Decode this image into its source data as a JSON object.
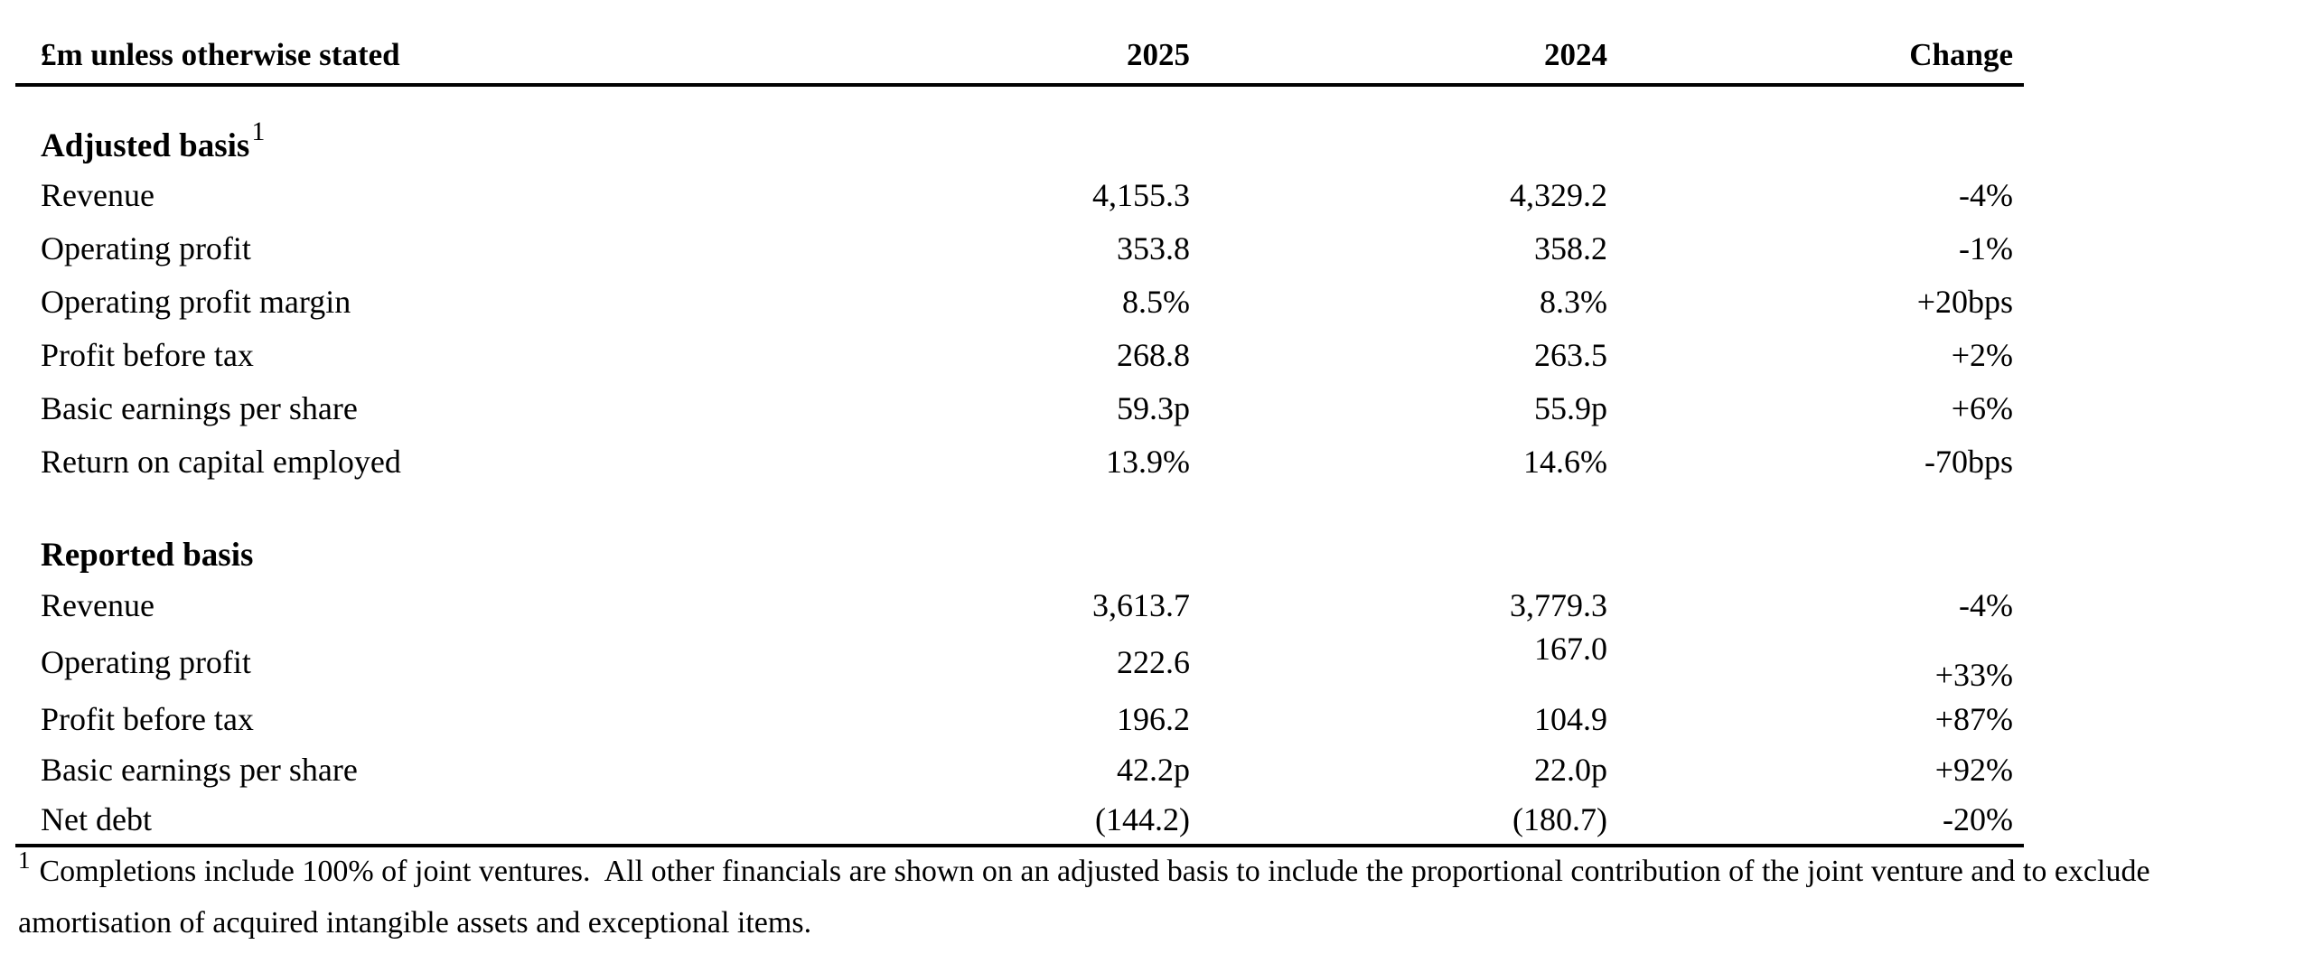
{
  "table": {
    "header": {
      "label": "£m unless otherwise stated",
      "col2025": "2025",
      "col2024": "2024",
      "change": "Change"
    },
    "sections": [
      {
        "title": "Adjusted basis",
        "title_superscript": "1",
        "rows": [
          {
            "label": "Revenue",
            "v2025": "4,155.3",
            "v2024": "4,329.2",
            "change": "-4%"
          },
          {
            "label": "Operating profit",
            "v2025": "353.8",
            "v2024": "358.2",
            "change": "-1%"
          },
          {
            "label": "Operating profit margin",
            "v2025": "8.5%",
            "v2024": "8.3%",
            "change": "+20bps"
          },
          {
            "label": "Profit before tax",
            "v2025": "268.8",
            "v2024": "263.5",
            "change": "+2%"
          },
          {
            "label": "Basic earnings per share",
            "v2025": "59.3p",
            "v2024": "55.9p",
            "change": "+6%"
          },
          {
            "label": "Return on capital employed",
            "v2025": "13.9%",
            "v2024": "14.6%",
            "change": "-70bps"
          }
        ]
      },
      {
        "title": "Reported basis",
        "rows": [
          {
            "label": "Revenue",
            "v2025": "3,613.7",
            "v2024": "3,779.3",
            "change": "-4%"
          },
          {
            "label": "Operating profit",
            "v2025": "222.6",
            "v2024": "167.0",
            "change": "+33%"
          },
          {
            "label": "Profit before tax",
            "v2025": "196.2",
            "v2024": "104.9",
            "change": "+87%"
          },
          {
            "label": "Basic earnings per share",
            "v2025": "42.2p",
            "v2024": "22.0p",
            "change": "+92%"
          },
          {
            "label": "Net debt",
            "v2025": "(144.2)",
            "v2024": "(180.7)",
            "change": "-20%"
          }
        ]
      }
    ],
    "footnote": {
      "marker": "1",
      "text": "Completions include 100% of joint ventures.  All other financials are shown on an adjusted basis to include the proportional contribution of the joint venture and to exclude amortisation of acquired intangible assets and exceptional items."
    }
  }
}
